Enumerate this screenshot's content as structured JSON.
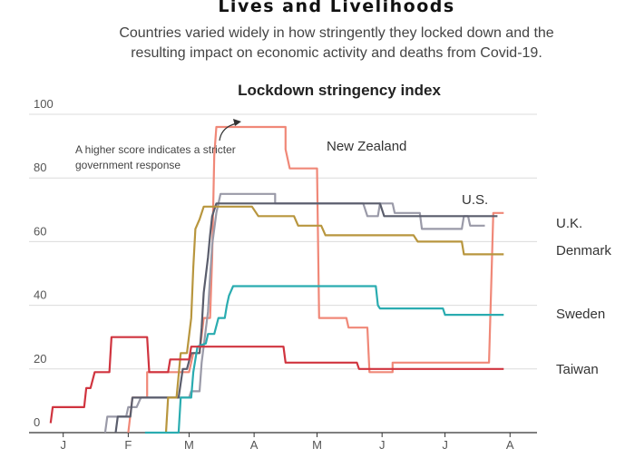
{
  "header": {
    "title": "Lives and Livelihoods",
    "subtitle_line1": "Countries varied widely in how stringently they locked down and the",
    "subtitle_line2": "resulting impact on economic activity and deaths from Covid-19."
  },
  "chart_data": {
    "type": "line",
    "title": "Lockdown stringency index",
    "xlabel": "",
    "ylabel": "",
    "ylim": [
      0,
      100
    ],
    "yticks": [
      0,
      20,
      40,
      60,
      80,
      100
    ],
    "xlim": [
      0,
      240
    ],
    "xtick_positions": [
      15,
      46,
      75,
      106,
      136,
      167,
      197,
      228
    ],
    "xtick_labels": [
      "J",
      "F",
      "M",
      "A",
      "M",
      "J",
      "J",
      "A"
    ],
    "grid": true,
    "legend": "direct-labels",
    "annotation": {
      "line1": "A higher score indicates a stricter",
      "line2": "government response"
    },
    "series": [
      {
        "name": "New Zealand",
        "color": "#f08878",
        "points": [
          [
            46,
            0
          ],
          [
            48,
            11
          ],
          [
            55,
            11
          ],
          [
            55,
            19
          ],
          [
            75,
            19
          ],
          [
            77,
            25
          ],
          [
            80,
            25
          ],
          [
            82,
            36
          ],
          [
            85,
            36
          ],
          [
            86,
            55
          ],
          [
            87,
            87
          ],
          [
            88,
            96
          ],
          [
            121,
            96
          ],
          [
            121,
            89
          ],
          [
            123,
            83
          ],
          [
            136,
            83
          ],
          [
            137,
            36
          ],
          [
            150,
            36
          ],
          [
            151,
            33
          ],
          [
            160,
            33
          ],
          [
            161,
            19
          ],
          [
            172,
            19
          ],
          [
            172,
            22
          ],
          [
            218,
            22
          ],
          [
            220,
            69
          ],
          [
            225,
            69
          ]
        ]
      },
      {
        "name": "U.S.",
        "color": "#9a9aa8",
        "points": [
          [
            35,
            0
          ],
          [
            36,
            5
          ],
          [
            45,
            5
          ],
          [
            46,
            8
          ],
          [
            50,
            8
          ],
          [
            52,
            11
          ],
          [
            75,
            11
          ],
          [
            76,
            13
          ],
          [
            80,
            13
          ],
          [
            81,
            22
          ],
          [
            84,
            38
          ],
          [
            85,
            49
          ],
          [
            86,
            59
          ],
          [
            88,
            69
          ],
          [
            90,
            75
          ],
          [
            116,
            75
          ],
          [
            116,
            72
          ],
          [
            158,
            72
          ],
          [
            160,
            68
          ],
          [
            165,
            68
          ],
          [
            166,
            72
          ],
          [
            172,
            72
          ],
          [
            173,
            69
          ],
          [
            185,
            69
          ],
          [
            186,
            64
          ],
          [
            205,
            64
          ],
          [
            206,
            68
          ],
          [
            208,
            68
          ],
          [
            209,
            65
          ],
          [
            216,
            65
          ]
        ]
      },
      {
        "name": "U.K.",
        "color": "#5a5d6c",
        "points": [
          [
            40,
            0
          ],
          [
            41,
            5
          ],
          [
            47,
            5
          ],
          [
            48,
            11
          ],
          [
            70,
            11
          ],
          [
            72,
            20
          ],
          [
            74,
            20
          ],
          [
            76,
            25
          ],
          [
            80,
            25
          ],
          [
            81,
            33
          ],
          [
            82,
            44
          ],
          [
            84,
            55
          ],
          [
            85,
            62
          ],
          [
            86,
            68
          ],
          [
            88,
            72
          ],
          [
            166,
            72
          ],
          [
            168,
            68
          ],
          [
            190,
            68
          ],
          [
            192,
            68
          ],
          [
            218,
            68
          ],
          [
            222,
            68
          ]
        ]
      },
      {
        "name": "Denmark",
        "color": "#b8963e",
        "points": [
          [
            64,
            0
          ],
          [
            65,
            11
          ],
          [
            69,
            11
          ],
          [
            71,
            25
          ],
          [
            74,
            25
          ],
          [
            76,
            36
          ],
          [
            77,
            52
          ],
          [
            78,
            64
          ],
          [
            80,
            67
          ],
          [
            82,
            71
          ],
          [
            105,
            71
          ],
          [
            108,
            68
          ],
          [
            125,
            68
          ],
          [
            127,
            65
          ],
          [
            138,
            65
          ],
          [
            140,
            62
          ],
          [
            182,
            62
          ],
          [
            184,
            60
          ],
          [
            205,
            60
          ],
          [
            206,
            56
          ],
          [
            225,
            56
          ]
        ]
      },
      {
        "name": "Sweden",
        "color": "#2aacb0",
        "points": [
          [
            54,
            0
          ],
          [
            70,
            0
          ],
          [
            71,
            11
          ],
          [
            76,
            11
          ],
          [
            77,
            19
          ],
          [
            79,
            27
          ],
          [
            83,
            28
          ],
          [
            84,
            31
          ],
          [
            87,
            31
          ],
          [
            89,
            36
          ],
          [
            92,
            36
          ],
          [
            93,
            40
          ],
          [
            94,
            43
          ],
          [
            96,
            46
          ],
          [
            164,
            46
          ],
          [
            165,
            40
          ],
          [
            166,
            39
          ],
          [
            196,
            39
          ],
          [
            197,
            37
          ],
          [
            225,
            37
          ]
        ]
      },
      {
        "name": "Taiwan",
        "color": "#d0343f",
        "points": [
          [
            9,
            3
          ],
          [
            10,
            8
          ],
          [
            25,
            8
          ],
          [
            26,
            14
          ],
          [
            28,
            14
          ],
          [
            30,
            19
          ],
          [
            37,
            19
          ],
          [
            38,
            30
          ],
          [
            55,
            30
          ],
          [
            56,
            19
          ],
          [
            65,
            19
          ],
          [
            66,
            23
          ],
          [
            75,
            23
          ],
          [
            76,
            27
          ],
          [
            120,
            27
          ],
          [
            121,
            22
          ],
          [
            155,
            22
          ],
          [
            156,
            20
          ],
          [
            225,
            20
          ]
        ]
      }
    ]
  }
}
